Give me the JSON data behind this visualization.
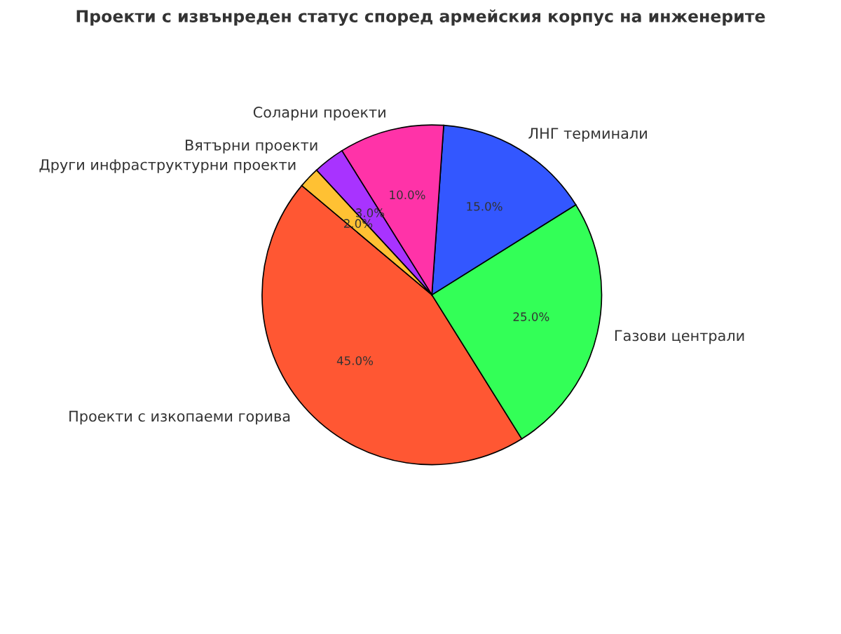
{
  "chart_data": {
    "type": "pie",
    "title": "Проекти с извънреден статус според армейския корпус на инженерите",
    "categories": [
      "Проекти с изкопаеми горива",
      "Газови централи",
      "ЛНГ терминали",
      "Соларни проекти",
      "Вятърни проекти",
      "Други инфраструктурни проекти"
    ],
    "values": [
      45,
      25,
      15,
      10,
      3,
      2
    ],
    "colors": [
      "#ff5733",
      "#33ff57",
      "#3357ff",
      "#ff33a8",
      "#a833ff",
      "#ffc133"
    ],
    "value_labels": [
      "45.0%",
      "25.0%",
      "15.0%",
      "10.0%",
      "3.0%",
      "2.0%"
    ],
    "legend": false
  }
}
